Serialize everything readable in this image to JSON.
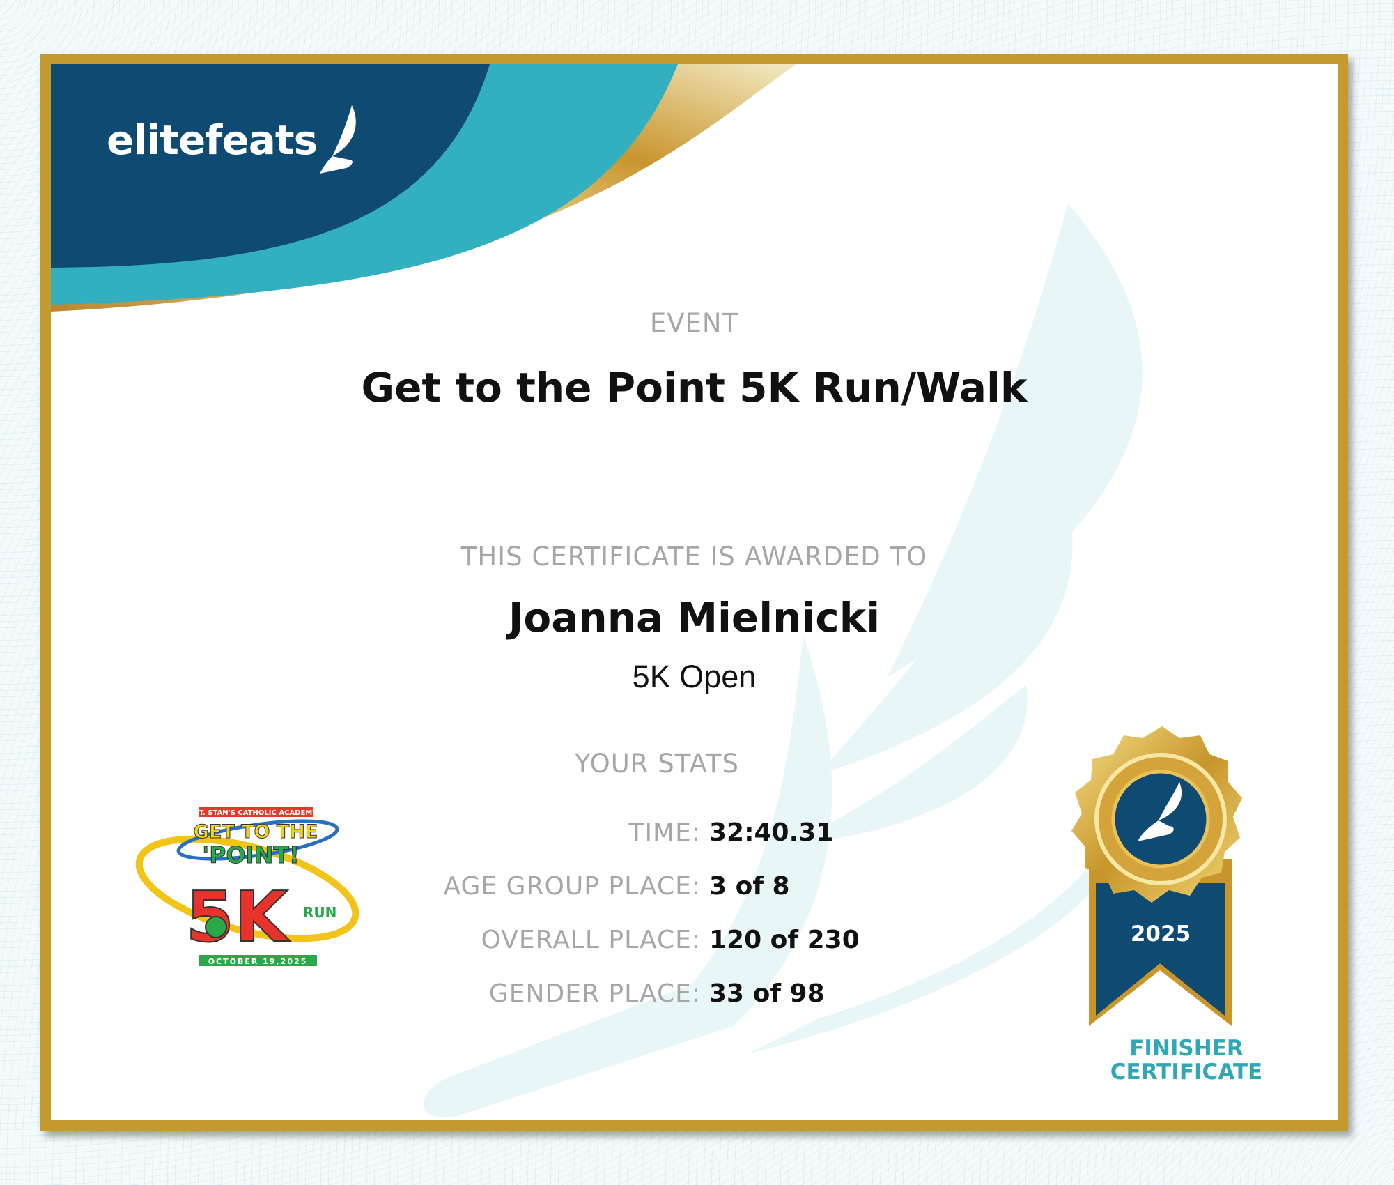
{
  "brand": {
    "name": "elitefeats",
    "icon": "winged-shoe-icon",
    "colors": {
      "navy": "#0f4a73",
      "teal": "#33b0bf",
      "gold": "#c49a2e"
    }
  },
  "event": {
    "label": "EVENT",
    "title": "Get to the Point 5K Run/Walk"
  },
  "award": {
    "label": "THIS CERTIFICATE IS AWARDED TO",
    "name": "Joanna Mielnicki",
    "division": "5K Open"
  },
  "stats": {
    "heading": "YOUR STATS",
    "rows": [
      {
        "label": "TIME:",
        "value": "32:40.31"
      },
      {
        "label": "AGE GROUP PLACE:",
        "value": "3 of 8"
      },
      {
        "label": "OVERALL PLACE:",
        "value": "120 of 230"
      },
      {
        "label": "GENDER PLACE:",
        "value": "33 of 98"
      }
    ]
  },
  "event_logo": {
    "top": "ST. STAN'S CATHOLIC ACADEMY",
    "line1": "GET TO THE",
    "line2": "'POINT!",
    "big": "5K",
    "run": "RUN",
    "date": "OCTOBER 19,2025"
  },
  "badge": {
    "year": "2025",
    "line1": "FINISHER",
    "line2": "CERTIFICATE"
  }
}
